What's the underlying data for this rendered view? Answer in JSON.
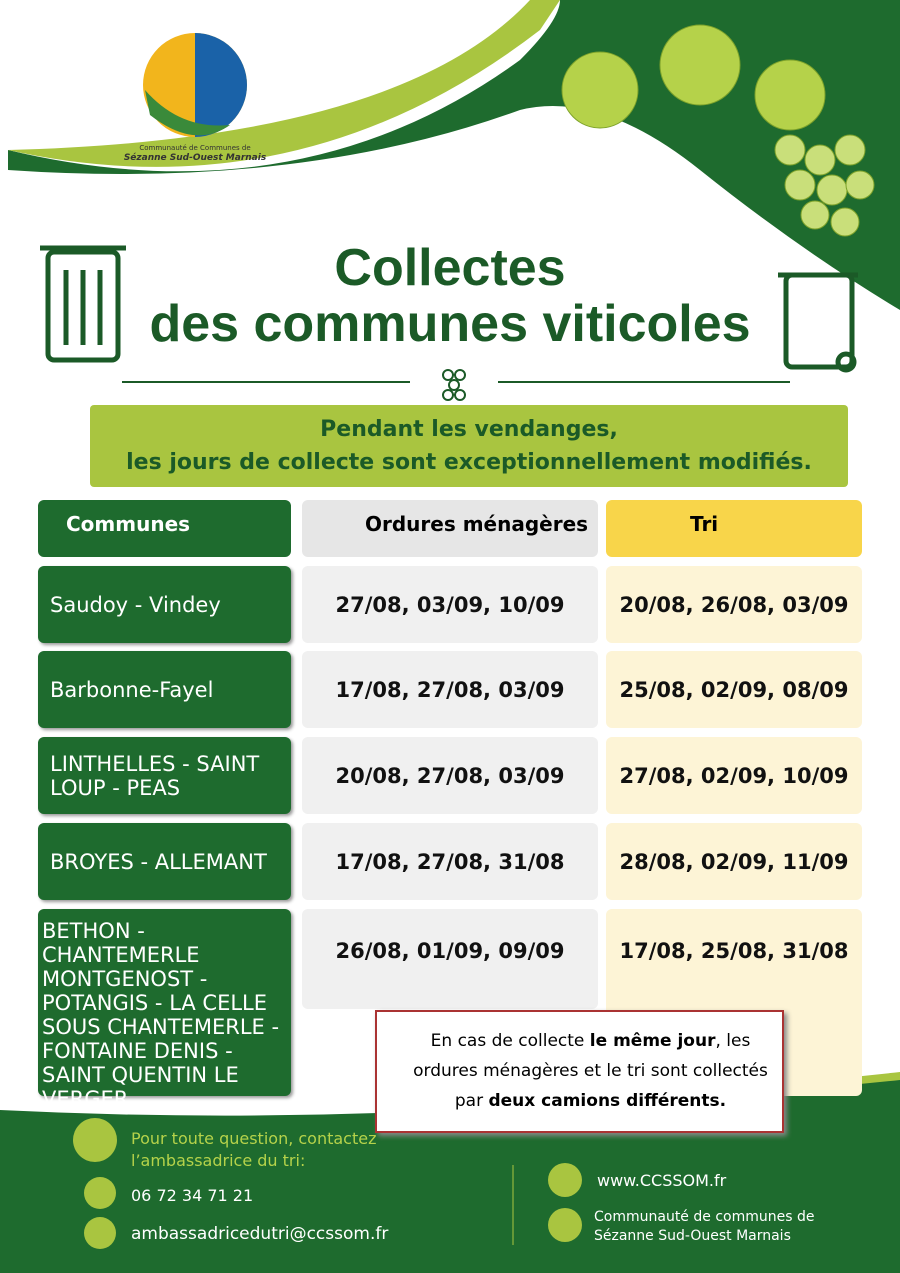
{
  "logo": {
    "line1": "Communauté de Communes de",
    "line2": "Sézanne Sud-Ouest Marnais"
  },
  "title": {
    "line1": "Collectes",
    "line2": "des communes viticoles"
  },
  "banner": {
    "line1": "Pendant les vendanges,",
    "line2": "les jours de collecte sont exceptionnellement modifiés."
  },
  "table": {
    "headers": [
      "Communes",
      "Ordures ménagères",
      "Tri"
    ],
    "rows": [
      [
        "Saudoy - Vindey",
        "27/08, 03/09, 10/09",
        "20/08, 26/08, 03/09"
      ],
      [
        "Barbonne-Fayel",
        "17/08, 27/08, 03/09",
        "25/08, 02/09, 08/09"
      ],
      [
        "LINTHELLES - SAINT LOUP - PEAS",
        "20/08, 27/08, 03/09",
        "27/08, 02/09, 10/09"
      ],
      [
        "BROYES  -  ALLEMANT",
        "17/08, 27/08, 31/08",
        "28/08, 02/09, 11/09"
      ],
      [
        "BETHON - CHANTEMERLE MONTGENOST - POTANGIS - LA CELLE SOUS CHANTEMERLE - FONTAINE DENIS - SAINT QUENTIN LE VERGER",
        "26/08, 01/09, 09/09",
        "17/08, 25/08, 31/08"
      ]
    ]
  },
  "notice": {
    "part1": "En cas de collecte ",
    "bold1": "le même jour",
    "part2": ", les ordures ménagères et le tri sont collectés par ",
    "bold2": "deux camions différents."
  },
  "footer": {
    "question": "Pour toute question, contactez l’ambassadrice du tri:",
    "phone": "06 72 34 71 21",
    "email": "ambassadricedutri@ccssom.fr",
    "website": "www.CCSSOM.fr",
    "facebook": "Communauté de communes de Sézanne Sud-Ouest Marnais"
  }
}
